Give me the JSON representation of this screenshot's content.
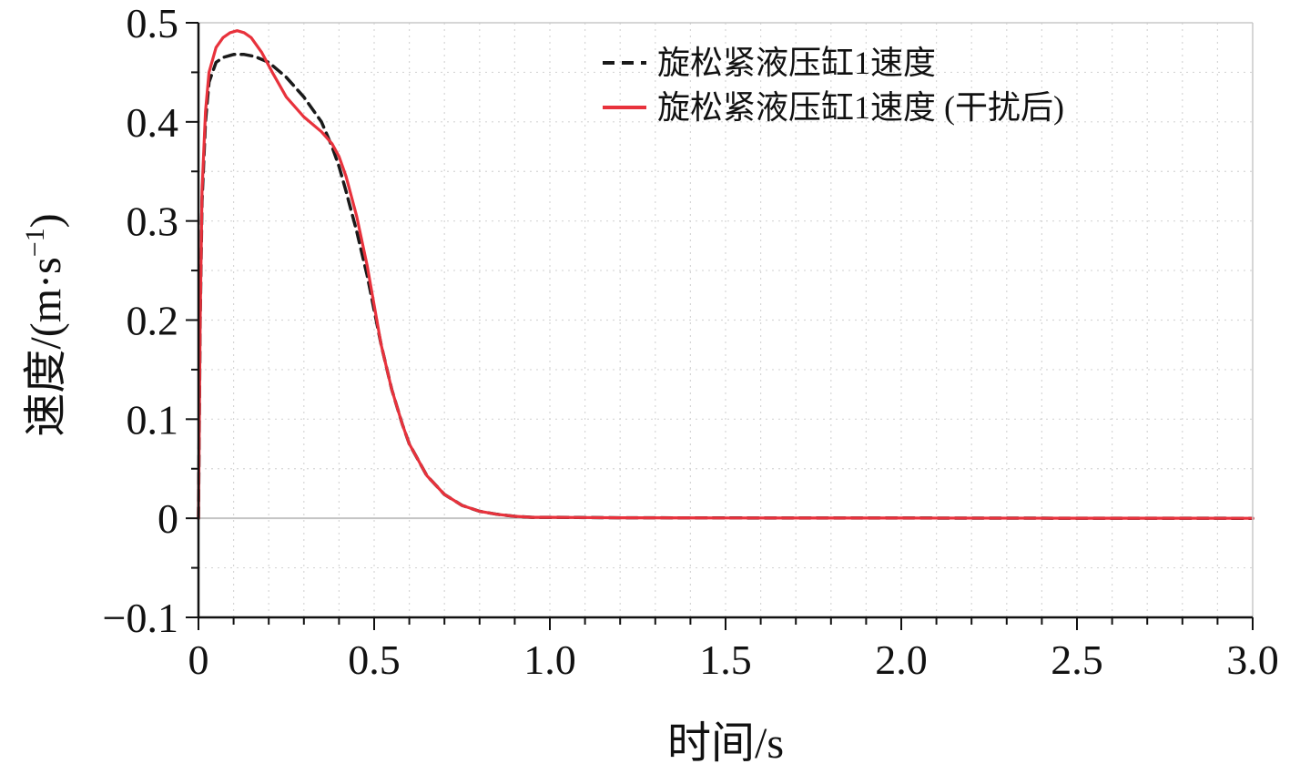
{
  "chart_data": {
    "type": "line",
    "title": "",
    "xlabel": "时间/s",
    "ylabel_main": "速度/(m·s",
    "ylabel_sup": "−1",
    "ylabel_close": ")",
    "xlim": [
      0,
      3.0
    ],
    "ylim": [
      -0.1,
      0.5
    ],
    "x_ticks": [
      0,
      0.5,
      1.0,
      1.5,
      2.0,
      2.5,
      3.0
    ],
    "x_tick_labels": [
      "0",
      "0.5",
      "1.0",
      "1.5",
      "2.0",
      "2.5",
      "3.0"
    ],
    "y_ticks": [
      -0.1,
      0,
      0.1,
      0.2,
      0.3,
      0.4,
      0.5
    ],
    "y_tick_labels": [
      "−0.1",
      "0",
      "0.1",
      "0.2",
      "0.3",
      "0.4",
      "0.5"
    ],
    "grid": true,
    "legend_position": "top-right",
    "series": [
      {
        "name": "旋松紧液压缸1速度",
        "color": "#1a1a1a",
        "style": "dashed",
        "x": [
          0,
          0.005,
          0.01,
          0.02,
          0.03,
          0.05,
          0.07,
          0.1,
          0.13,
          0.16,
          0.2,
          0.25,
          0.3,
          0.35,
          0.38,
          0.4,
          0.42,
          0.45,
          0.48,
          0.5,
          0.52,
          0.55,
          0.58,
          0.6,
          0.65,
          0.7,
          0.75,
          0.8,
          0.85,
          0.9,
          0.95,
          1.0,
          1.2,
          1.5,
          2.0,
          2.5,
          3.0
        ],
        "y": [
          0,
          0.2,
          0.32,
          0.4,
          0.44,
          0.46,
          0.465,
          0.468,
          0.468,
          0.466,
          0.46,
          0.445,
          0.425,
          0.4,
          0.375,
          0.355,
          0.33,
          0.29,
          0.245,
          0.21,
          0.175,
          0.13,
          0.095,
          0.075,
          0.043,
          0.024,
          0.013,
          0.007,
          0.004,
          0.002,
          0.001,
          0.001,
          0.0005,
          0.0003,
          0.0002,
          0.0001,
          0
        ]
      },
      {
        "name": "旋松紧液压缸1速度 (干扰后)",
        "color": "#e8323c",
        "style": "solid",
        "x": [
          0,
          0.005,
          0.01,
          0.02,
          0.03,
          0.05,
          0.07,
          0.09,
          0.11,
          0.13,
          0.15,
          0.18,
          0.21,
          0.25,
          0.3,
          0.35,
          0.38,
          0.4,
          0.42,
          0.45,
          0.48,
          0.5,
          0.52,
          0.55,
          0.58,
          0.6,
          0.65,
          0.7,
          0.75,
          0.8,
          0.85,
          0.9,
          0.95,
          1.0,
          1.2,
          1.5,
          2.0,
          2.5,
          3.0
        ],
        "y": [
          0,
          0.2,
          0.33,
          0.41,
          0.45,
          0.475,
          0.485,
          0.49,
          0.492,
          0.49,
          0.485,
          0.47,
          0.45,
          0.425,
          0.405,
          0.39,
          0.378,
          0.365,
          0.345,
          0.305,
          0.255,
          0.215,
          0.175,
          0.13,
          0.095,
          0.075,
          0.043,
          0.024,
          0.013,
          0.007,
          0.004,
          0.002,
          0.001,
          0.001,
          0.0005,
          0.0003,
          0.0002,
          0.0001,
          0
        ]
      }
    ]
  }
}
